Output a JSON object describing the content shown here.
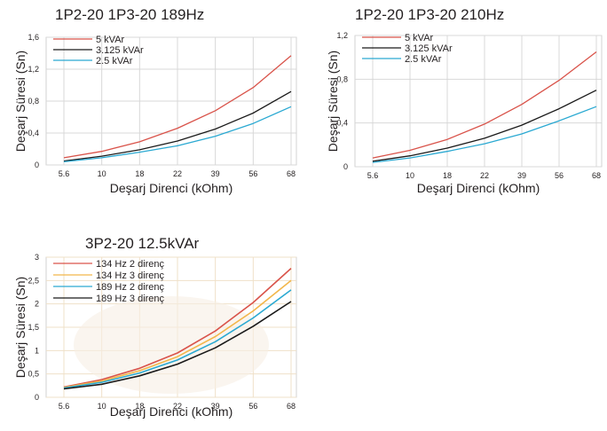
{
  "colors": {
    "red": "#d9534a",
    "black": "#1a1a1a",
    "cyan": "#2aa9d2",
    "orange": "#f2b64a",
    "grid": "#d8d8d8",
    "grid3": "#efe0c8"
  },
  "chart_data": [
    {
      "type": "line",
      "title": "1P2-20 1P3-20  189Hz",
      "xlabel": "Deşarj Direnci (kOhm)",
      "ylabel": "Deşarj Süresi (Sn)",
      "x_ticks": [
        "5.6",
        "10",
        "18",
        "22",
        "39",
        "56",
        "68"
      ],
      "y_ticks": [
        "0",
        "0,4",
        "0,8",
        "1,2",
        "1,6"
      ],
      "ylim": [
        0,
        1.6
      ],
      "legend": "top-left",
      "grid": true,
      "series": [
        {
          "name": "5 kVAr",
          "color": "red",
          "values": [
            0.09,
            0.17,
            0.29,
            0.46,
            0.68,
            0.97,
            1.37
          ]
        },
        {
          "name": "3.125 kVAr",
          "color": "black",
          "values": [
            0.05,
            0.11,
            0.19,
            0.3,
            0.45,
            0.65,
            0.92
          ]
        },
        {
          "name": "2.5 kVAr",
          "color": "cyan",
          "values": [
            0.04,
            0.09,
            0.16,
            0.24,
            0.36,
            0.52,
            0.73
          ]
        }
      ]
    },
    {
      "type": "line",
      "title": "1P2-20 1P3-20  210Hz",
      "xlabel": "Deşarj Direnci (kOhm)",
      "ylabel": "Deşarj Süresi (Sn)",
      "x_ticks": [
        "5.6",
        "10",
        "18",
        "22",
        "39",
        "56",
        "68"
      ],
      "y_ticks": [
        "0",
        "0,4",
        "0,8",
        "1,2"
      ],
      "ylim": [
        0,
        1.2
      ],
      "legend": "top-left",
      "grid": true,
      "series": [
        {
          "name": "5 kVAr",
          "color": "red",
          "values": [
            0.08,
            0.15,
            0.25,
            0.39,
            0.57,
            0.79,
            1.05
          ]
        },
        {
          "name": "3.125 kVAr",
          "color": "black",
          "values": [
            0.05,
            0.1,
            0.17,
            0.26,
            0.38,
            0.53,
            0.7
          ]
        },
        {
          "name": "2.5 kVAr",
          "color": "cyan",
          "values": [
            0.04,
            0.08,
            0.14,
            0.21,
            0.3,
            0.42,
            0.55
          ]
        }
      ]
    },
    {
      "type": "line",
      "title": "3P2-20  12.5kVAr",
      "xlabel": "Deşarj Direnci (kOhm)",
      "ylabel": "Deşarj Süresi (Sn)",
      "x_ticks": [
        "5.6",
        "10",
        "18",
        "22",
        "39",
        "56",
        "68"
      ],
      "y_ticks": [
        "0",
        "0,5",
        "1",
        "1,5",
        "2",
        "2,5",
        "3"
      ],
      "ylim": [
        0,
        3
      ],
      "legend": "top-left",
      "grid": true,
      "series": [
        {
          "name": "134 Hz 2 direnç",
          "color": "red",
          "values": [
            0.22,
            0.38,
            0.62,
            0.95,
            1.42,
            2.03,
            2.76
          ]
        },
        {
          "name": "134 Hz 3 direnç",
          "color": "orange",
          "values": [
            0.21,
            0.35,
            0.57,
            0.87,
            1.3,
            1.85,
            2.5
          ]
        },
        {
          "name": "189 Hz 2 direnç",
          "color": "cyan",
          "values": [
            0.2,
            0.32,
            0.52,
            0.8,
            1.19,
            1.7,
            2.3
          ]
        },
        {
          "name": "189 Hz 3 direnç",
          "color": "black",
          "values": [
            0.18,
            0.28,
            0.46,
            0.71,
            1.06,
            1.52,
            2.05
          ]
        }
      ]
    }
  ]
}
